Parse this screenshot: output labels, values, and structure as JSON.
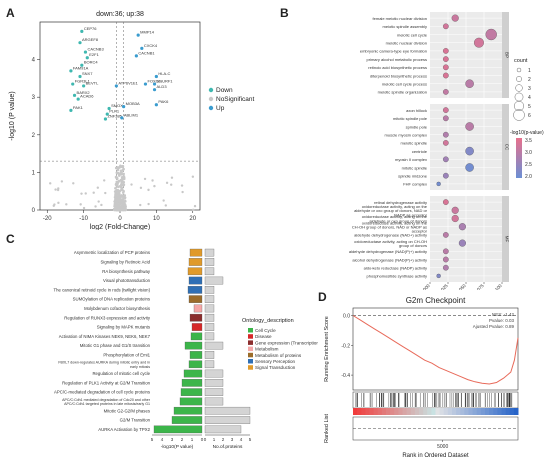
{
  "panels": {
    "a": {
      "letter": "A"
    },
    "b": {
      "letter": "B"
    },
    "c": {
      "letter": "C"
    },
    "d": {
      "letter": "D"
    }
  },
  "chart_data": [
    {
      "type": "scatter",
      "panel": "A",
      "title": "down:36; up:38",
      "xlabel": "log2 (Fold-Change)",
      "ylabel": "-log10 (P value)",
      "xlim": [
        -22,
        22
      ],
      "ylim": [
        0,
        5
      ],
      "xticks": [
        -20,
        -10,
        0,
        10,
        20
      ],
      "yticks": [
        0,
        1,
        2,
        3,
        4
      ],
      "legend": [
        "Down",
        "NoSignificant",
        "Up"
      ],
      "legend_position": "right",
      "colors": {
        "Down": "#3fb8b0",
        "NoSignificant": "#c8c8c8",
        "Up": "#3a9ccf"
      },
      "labeled_genes": [
        {
          "gene": "CEP76",
          "x": -10.5,
          "y": 4.75,
          "group": "Down"
        },
        {
          "gene": "ARGEF8",
          "x": -11,
          "y": 4.45,
          "group": "Down"
        },
        {
          "gene": "CACNB3",
          "x": -9.5,
          "y": 4.2,
          "group": "Down"
        },
        {
          "gene": "E2F1",
          "x": -9,
          "y": 4.05,
          "group": "Down"
        },
        {
          "gene": "BORC4",
          "x": -10.5,
          "y": 3.85,
          "group": "Down"
        },
        {
          "gene": "FAM91A",
          "x": -13.5,
          "y": 3.7,
          "group": "Down"
        },
        {
          "gene": "SNX7",
          "x": -11,
          "y": 3.55,
          "group": "Down"
        },
        {
          "gene": "FGR3L1",
          "x": -13,
          "y": 3.35,
          "group": "Down"
        },
        {
          "gene": "BEVTL",
          "x": -10,
          "y": 3.3,
          "group": "Down"
        },
        {
          "gene": "BARX2",
          "x": -12.5,
          "y": 3.05,
          "group": "Down"
        },
        {
          "gene": "ACAD6",
          "x": -11.5,
          "y": 2.95,
          "group": "Down"
        },
        {
          "gene": "PAK1",
          "x": -13.5,
          "y": 2.65,
          "group": "Down"
        },
        {
          "gene": "MMP14",
          "x": 5,
          "y": 4.65,
          "group": "Up"
        },
        {
          "gene": "CXCK4",
          "x": 6,
          "y": 4.3,
          "group": "Up"
        },
        {
          "gene": "CACNB1",
          "x": 4.5,
          "y": 4.1,
          "group": "Up"
        },
        {
          "gene": "HLA-C",
          "x": 10,
          "y": 3.55,
          "group": "Up"
        },
        {
          "gene": "FOXG1",
          "x": 7,
          "y": 3.35,
          "group": "Up"
        },
        {
          "gene": "SNURF1",
          "x": 9.5,
          "y": 3.35,
          "group": "Up"
        },
        {
          "gene": "ALD3",
          "x": 9.5,
          "y": 3.2,
          "group": "Up"
        },
        {
          "gene": "ATP6V1E1",
          "x": -1,
          "y": 3.3,
          "group": "Up"
        },
        {
          "gene": "SMOX",
          "x": -3,
          "y": 2.7,
          "group": "Down"
        },
        {
          "gene": "PLK1",
          "x": -3.5,
          "y": 2.55,
          "group": "Down"
        },
        {
          "gene": "ZNF385",
          "x": -4,
          "y": 2.42,
          "group": "Down"
        },
        {
          "gene": "MOB3A",
          "x": 1,
          "y": 2.75,
          "group": "Up"
        },
        {
          "gene": "PAK6",
          "x": 10,
          "y": 2.8,
          "group": "Up"
        },
        {
          "gene": "ABLIM1",
          "x": 0.5,
          "y": 2.45,
          "group": "Up"
        }
      ]
    },
    {
      "type": "scatter",
      "panel": "B",
      "xlabel": "GeneRatio",
      "xlim": [
        0,
        0.1
      ],
      "xticks": [
        "0.000",
        "0.025",
        "0.050",
        "0.075",
        "0.100"
      ],
      "facets": [
        "BP",
        "CC",
        "MF"
      ],
      "legend_count_title": "count",
      "legend_counts": [
        1,
        2,
        3,
        4,
        5,
        6
      ],
      "legend_color_title": "-log10(p-value)",
      "legend_color_ticks": [
        3.5,
        3.0,
        2.5,
        2.0
      ],
      "color_low": "#6b8fd4",
      "color_high": "#e8708c",
      "terms": [
        {
          "facet": "BP",
          "label": "female meiotic nuclear division",
          "ratio": 0.035,
          "count": 3,
          "logp": 3.2
        },
        {
          "facet": "BP",
          "label": "meiotic spindle assembly",
          "ratio": 0.022,
          "count": 2,
          "logp": 3.3
        },
        {
          "facet": "BP",
          "label": "meiotic cell cycle",
          "ratio": 0.085,
          "count": 6,
          "logp": 3.1
        },
        {
          "facet": "BP",
          "label": "meiotic nuclear division",
          "ratio": 0.068,
          "count": 5,
          "logp": 3.3
        },
        {
          "facet": "BP",
          "label": "embryonic camera-type eye formation",
          "ratio": 0.022,
          "count": 2,
          "logp": 3.4
        },
        {
          "facet": "BP",
          "label": "primary alcohol metabolic process",
          "ratio": 0.022,
          "count": 2,
          "logp": 3.4
        },
        {
          "facet": "BP",
          "label": "retinoic acid biosynthetic process",
          "ratio": 0.022,
          "count": 2,
          "logp": 3.4
        },
        {
          "facet": "BP",
          "label": "diterpenoid biosynthetic process",
          "ratio": 0.022,
          "count": 2,
          "logp": 3.4
        },
        {
          "facet": "BP",
          "label": "meiotic cell cycle process",
          "ratio": 0.055,
          "count": 4,
          "logp": 3.0
        },
        {
          "facet": "BP",
          "label": "meiotic spindle organization",
          "ratio": 0.022,
          "count": 2,
          "logp": 3.1
        },
        {
          "facet": "CC",
          "label": "axon hillock",
          "ratio": 0.022,
          "count": 2,
          "logp": 3.3
        },
        {
          "facet": "CC",
          "label": "mitotic spindle pole",
          "ratio": 0.022,
          "count": 2,
          "logp": 3.0
        },
        {
          "facet": "CC",
          "label": "spindle pole",
          "ratio": 0.055,
          "count": 4,
          "logp": 3.0
        },
        {
          "facet": "CC",
          "label": "muscle myosin complex",
          "ratio": 0.022,
          "count": 2,
          "logp": 2.9
        },
        {
          "facet": "CC",
          "label": "meiotic spindle",
          "ratio": 0.022,
          "count": 2,
          "logp": 3.3
        },
        {
          "facet": "CC",
          "label": "centriole",
          "ratio": 0.055,
          "count": 4,
          "logp": 2.3
        },
        {
          "facet": "CC",
          "label": "myosin II complex",
          "ratio": 0.022,
          "count": 2,
          "logp": 2.7
        },
        {
          "facet": "CC",
          "label": "mitotic spindle",
          "ratio": 0.055,
          "count": 4,
          "logp": 2.1
        },
        {
          "facet": "CC",
          "label": "spindle midzone",
          "ratio": 0.022,
          "count": 2,
          "logp": 2.6
        },
        {
          "facet": "CC",
          "label": "FHF complex",
          "ratio": 0.012,
          "count": 1,
          "logp": 2.1
        },
        {
          "facet": "MF",
          "label": "retinal dehydrogenase activity",
          "ratio": 0.022,
          "count": 2,
          "logp": 3.4
        },
        {
          "facet": "MF",
          "label": "oxidoreductase activity, acting on the aldehyde or oxo group of donors, NAD or NADP as acceptor",
          "ratio": 0.035,
          "count": 3,
          "logp": 3.2
        },
        {
          "facet": "MF",
          "label": "oxidoreductase activity, acting on the aldehyde or oxo group of donors",
          "ratio": 0.035,
          "count": 3,
          "logp": 3.3
        },
        {
          "facet": "MF",
          "label": "oxidoreductase activity, acting on the CH-OH group of donors, NAD or NADP as acceptor",
          "ratio": 0.045,
          "count": 3,
          "logp": 2.8
        },
        {
          "facet": "MF",
          "label": "aldehyde dehydrogenase (NAD+) activity",
          "ratio": 0.022,
          "count": 2,
          "logp": 3.0
        },
        {
          "facet": "MF",
          "label": "oxidoreductase activity, acting on CH-OH group of donors",
          "ratio": 0.045,
          "count": 3,
          "logp": 2.6
        },
        {
          "facet": "MF",
          "label": "aldehyde dehydrogenase (NAD(P)+) activity",
          "ratio": 0.022,
          "count": 2,
          "logp": 3.0
        },
        {
          "facet": "MF",
          "label": "alcohol dehydrogenase (NAD(P)+) activity",
          "ratio": 0.022,
          "count": 2,
          "logp": 3.0
        },
        {
          "facet": "MF",
          "label": "aldo-keto reductase (NADP) activity",
          "ratio": 0.022,
          "count": 2,
          "logp": 2.9
        },
        {
          "facet": "MF",
          "label": "phosphoinositide synthase activity",
          "ratio": 0.012,
          "count": 1,
          "logp": 2.3
        }
      ]
    },
    {
      "type": "bar",
      "panel": "C",
      "xlabel_left": "-log10(P value)",
      "xlabel_right": "No.of.proteins",
      "left_ticks": [
        5,
        4,
        3,
        2,
        1,
        0
      ],
      "right_ticks": [
        0,
        1,
        2,
        3,
        4,
        5
      ],
      "legend_title": "Ontology_description",
      "legend_position": "right",
      "ontology_colors": {
        "Cell Cycle": "#3cb54a",
        "Disease": "#d62728",
        "Gene expression (Transcription)": "#8c2d2d",
        "Metabolism": "#f4a7a7",
        "Metabolism of proteins": "#9b6c2a",
        "Sensory Perception": "#2f6fb5",
        "Signal Transduction": "#e09a2a"
      },
      "pathways": [
        {
          "label": "Asymmetric localization of PCP proteins",
          "logp": 1.2,
          "count": 1,
          "ontology": "Signal Transduction"
        },
        {
          "label": "Signaling by Retinoic Acid",
          "logp": 1.3,
          "count": 1,
          "ontology": "Signal Transduction"
        },
        {
          "label": "RA biosynthesis pathway",
          "logp": 1.4,
          "count": 1,
          "ontology": "Signal Transduction"
        },
        {
          "label": "Visual phototransduction",
          "logp": 1.3,
          "count": 2,
          "ontology": "Sensory Perception"
        },
        {
          "label": "The canonical retinoid cycle in rods (twilight vision)",
          "logp": 1.4,
          "count": 1,
          "ontology": "Sensory Perception"
        },
        {
          "label": "SUMOylation of DNA replication proteins",
          "logp": 1.3,
          "count": 1,
          "ontology": "Metabolism of proteins"
        },
        {
          "label": "Molybdenum cofactor biosynthesis",
          "logp": 0.8,
          "count": 1,
          "ontology": "Metabolism"
        },
        {
          "label": "Regulation of RUNX3 expression and activity",
          "logp": 1.2,
          "count": 1,
          "ontology": "Gene expression (Transcription)"
        },
        {
          "label": "Signaling by MAPK mutants",
          "logp": 1.0,
          "count": 1,
          "ontology": "Disease"
        },
        {
          "label": "Activation of NIMA Kinases NEK9, NEK6, NEK7",
          "logp": 1.1,
          "count": 1,
          "ontology": "Cell Cycle"
        },
        {
          "label": "Mitotic G1 phase and G1/S transition",
          "logp": 1.7,
          "count": 2,
          "ontology": "Cell Cycle"
        },
        {
          "label": "Phosphorylation of Emi1",
          "logp": 1.2,
          "count": 1,
          "ontology": "Cell Cycle"
        },
        {
          "label": "FBXL7 down-regulates AURKA during mitotic entry and in early mitosis",
          "logp": 1.3,
          "count": 1,
          "ontology": "Cell Cycle"
        },
        {
          "label": "Regulation of mitotic cell cycle",
          "logp": 1.8,
          "count": 2,
          "ontology": "Cell Cycle"
        },
        {
          "label": "Regulation of PLK1 Activity at G2/M Transition",
          "logp": 2.0,
          "count": 2,
          "ontology": "Cell Cycle"
        },
        {
          "label": "APC/C-mediated degradation of cell cycle proteins",
          "logp": 2.1,
          "count": 2,
          "ontology": "Cell Cycle"
        },
        {
          "label": "APC/C:Cdh1 mediated degradation of Cdc20 and other APC/C:Cdh1 targeted proteins in late mitosis/early G1",
          "logp": 2.2,
          "count": 2,
          "ontology": "Cell Cycle"
        },
        {
          "label": "Mitotic G2-G2/M phases",
          "logp": 2.8,
          "count": 5,
          "ontology": "Cell Cycle"
        },
        {
          "label": "G2/M Transition",
          "logp": 3.0,
          "count": 5,
          "ontology": "Cell Cycle"
        },
        {
          "label": "AURKA Activation by TPX2",
          "logp": 4.8,
          "count": 4,
          "ontology": "Cell Cycle"
        }
      ]
    },
    {
      "type": "line",
      "panel": "D",
      "title": "G2m Checkpoint",
      "ylabel_top": "Running Enrichment Score",
      "ylabel_bottom": "Ranked List",
      "xlabel": "Rank in Ordered Dataset",
      "ylim": [
        -0.5,
        0.05
      ],
      "yticks": [
        0.0,
        -0.2,
        -0.4
      ],
      "xticks": [
        5000
      ],
      "stats": {
        "nes": "NES: -1.42",
        "pvalue": "Pvalue: 0.03",
        "padj": "Ajusted Pvalue: 0.89"
      },
      "x": [
        0,
        400,
        800,
        1200,
        1600,
        2000,
        2400,
        2800,
        3200,
        3600,
        4000,
        4400,
        4800,
        5200,
        5600,
        6000,
        6400,
        6800,
        7200,
        7600,
        8000,
        8400,
        8800,
        9000,
        9200
      ],
      "values": [
        0,
        -0.03,
        -0.06,
        -0.09,
        -0.12,
        -0.15,
        -0.18,
        -0.21,
        -0.24,
        -0.27,
        -0.3,
        -0.32,
        -0.35,
        -0.37,
        -0.39,
        -0.41,
        -0.43,
        -0.445,
        -0.455,
        -0.46,
        -0.45,
        -0.42,
        -0.38,
        -0.3,
        -0.15
      ],
      "curve_color": "#e86a5a"
    }
  ]
}
